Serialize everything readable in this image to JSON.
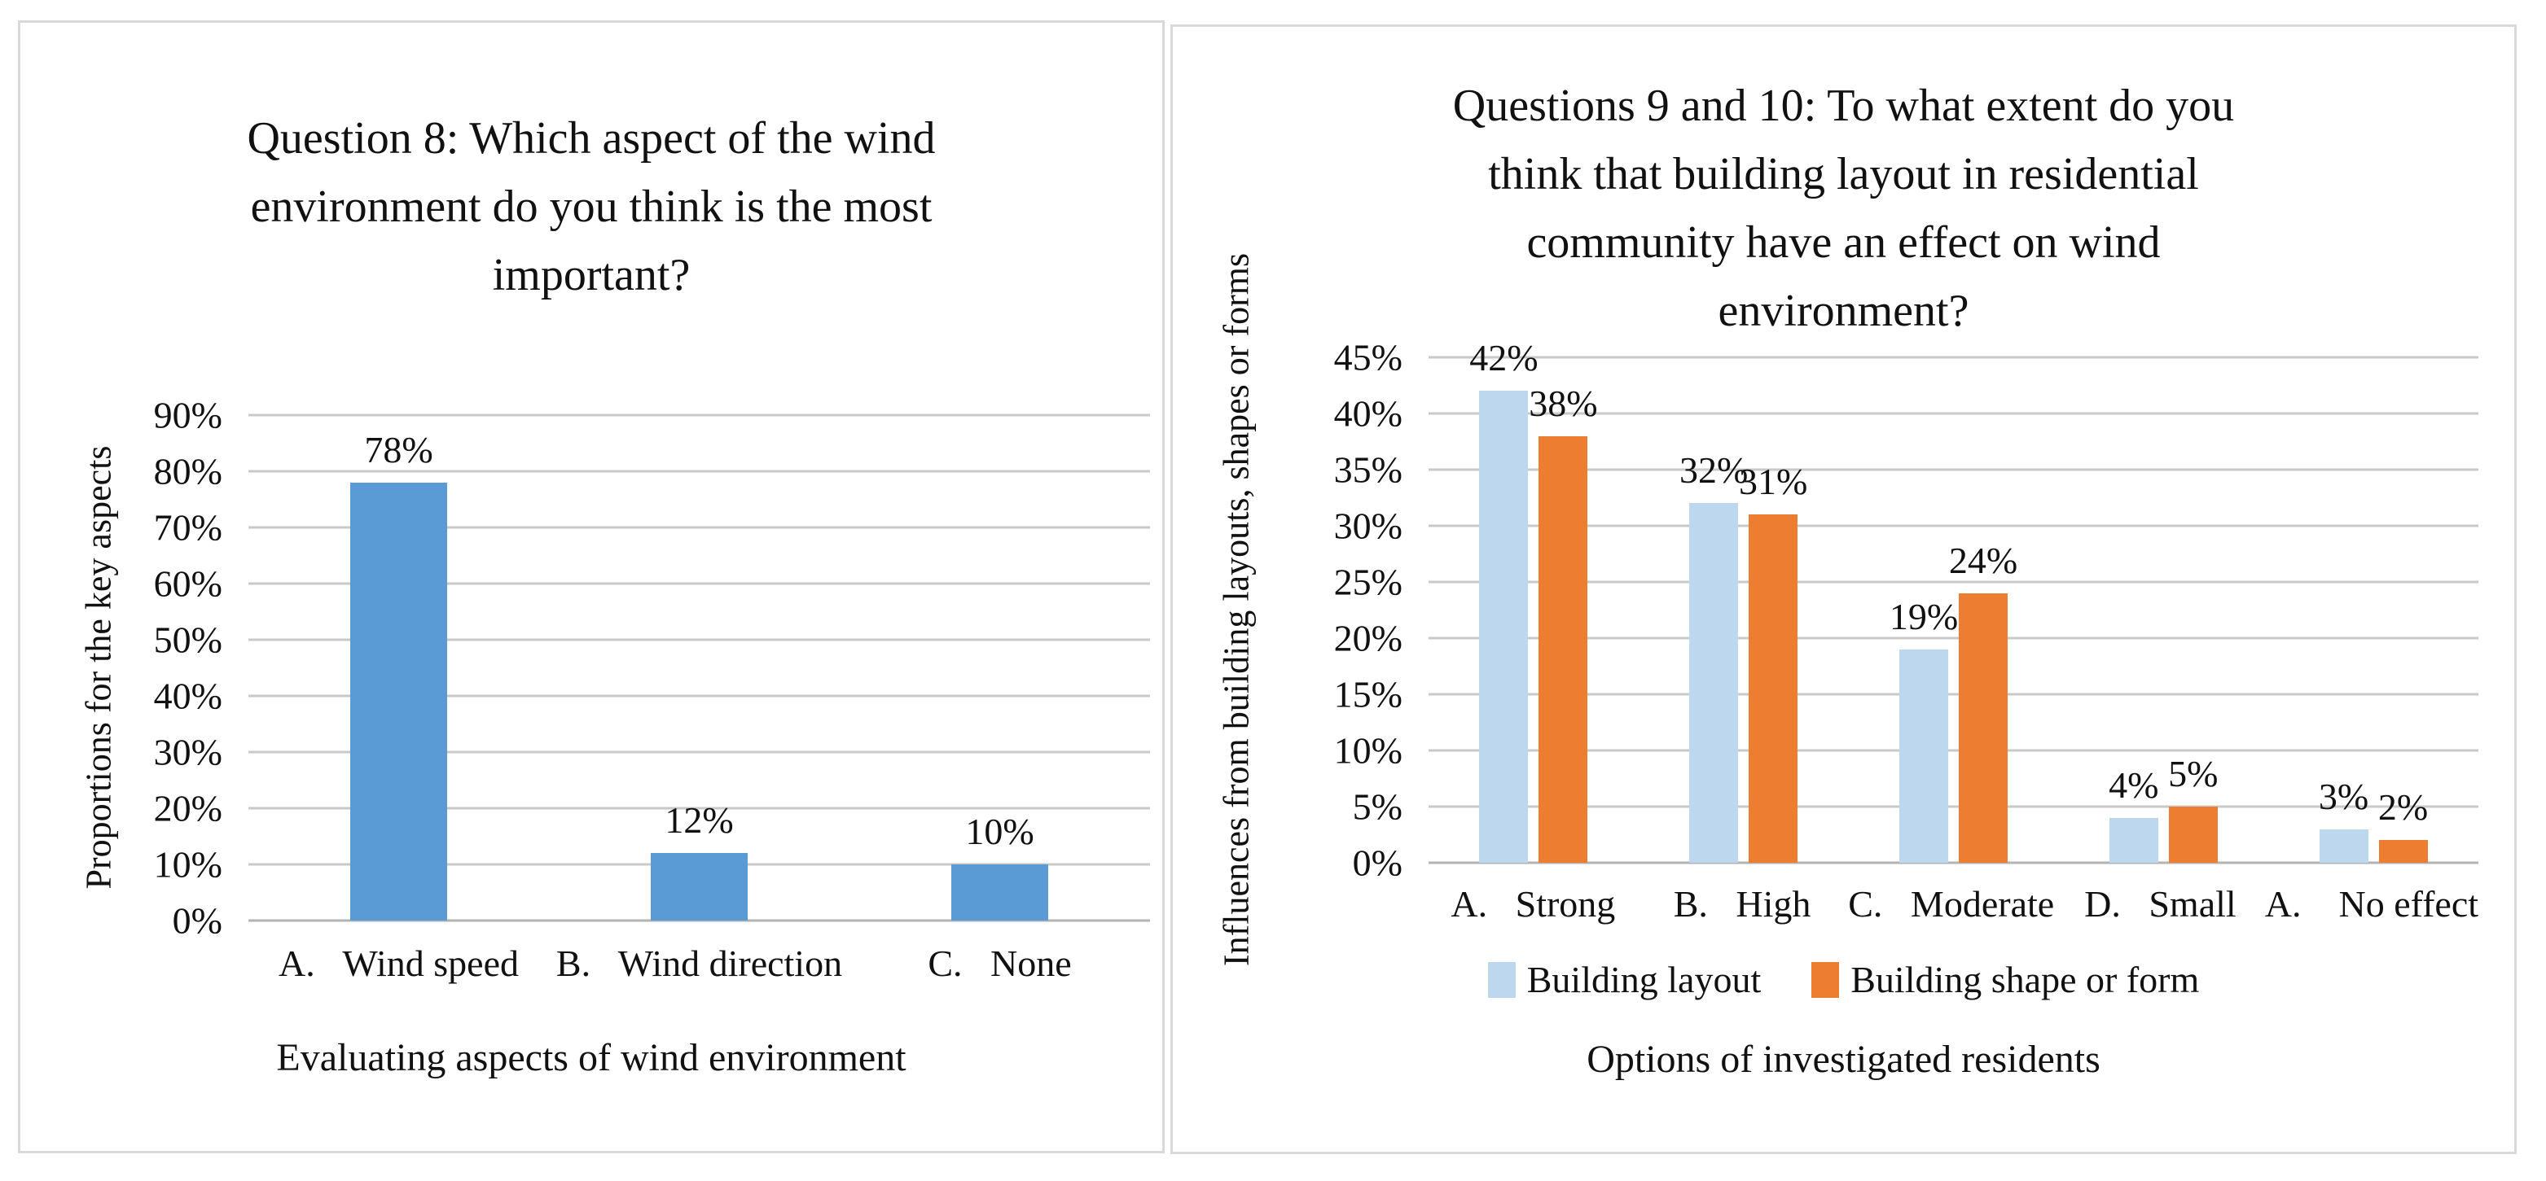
{
  "chart_data": [
    {
      "id": "q8",
      "type": "bar",
      "title": "Question 8: Which aspect of the wind\nenvironment do you think is the most\nimportant?",
      "ylabel": "Proportions for the key aspects",
      "xlabel": "Evaluating aspects of wind environment",
      "categories": [
        "A.   Wind speed",
        "B.   Wind direction",
        "C.   None"
      ],
      "series": [
        {
          "name": null,
          "color": "#5B9BD5",
          "values": [
            78,
            12,
            10
          ],
          "labels": [
            "78%",
            "12%",
            "10%"
          ]
        }
      ],
      "ylim": [
        0,
        90
      ],
      "ytick_step": 10,
      "ytick_labels": [
        "0%",
        "10%",
        "20%",
        "30%",
        "40%",
        "50%",
        "60%",
        "70%",
        "80%",
        "90%"
      ],
      "grid": true,
      "legend_position": null
    },
    {
      "id": "q9-10",
      "type": "bar",
      "title": "Questions 9 and 10: To what extent do you\nthink that building layout in residential\ncommunity have an effect on wind\nenvironment?",
      "ylabel": "Influences from building layouts, shapes or forms",
      "xlabel": "Options of investigated residents",
      "categories": [
        "A.   Strong",
        "B.   High",
        "C.   Moderate",
        "D.   Small",
        "A.    No effect"
      ],
      "series": [
        {
          "name": "Building layout",
          "color": "#BDD7EE",
          "values": [
            42,
            32,
            19,
            4,
            3
          ],
          "labels": [
            "42%",
            "32%",
            "19%",
            "4%",
            "3%"
          ]
        },
        {
          "name": "Building shape or form",
          "color": "#ED7D31",
          "values": [
            38,
            31,
            24,
            5,
            2
          ],
          "labels": [
            "38%",
            "31%",
            "24%",
            "5%",
            "2%"
          ]
        }
      ],
      "ylim": [
        0,
        45
      ],
      "ytick_step": 5,
      "ytick_labels": [
        "0%",
        "5%",
        "10%",
        "15%",
        "20%",
        "25%",
        "30%",
        "35%",
        "40%",
        "45%"
      ],
      "grid": true,
      "legend_position": "bottom"
    }
  ],
  "styles": {
    "grid_color": "#C9C9C9",
    "axis_color": "#B3B3B3",
    "panel_border": "#D9D9D9",
    "bar_blue": "#5B9BD5",
    "bar_light_blue": "#BDD7EE",
    "bar_orange": "#ED7D31"
  }
}
